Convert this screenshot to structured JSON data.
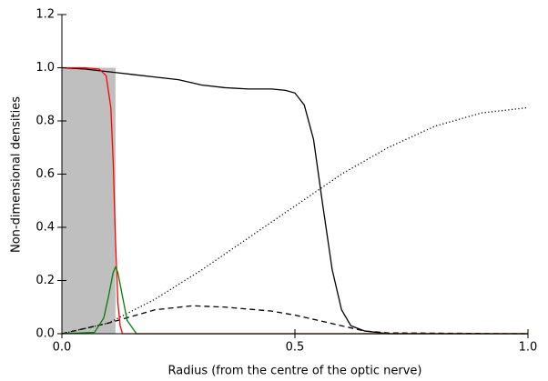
{
  "chart_data": {
    "type": "line",
    "xlabel": "Radius (from the centre of the optic nerve)",
    "ylabel": "Non-dimensional densities",
    "xlim": [
      0,
      1
    ],
    "ylim": [
      0,
      1.2
    ],
    "xticks": [
      {
        "value": 0,
        "label": "0.0"
      },
      0.5,
      {
        "value": 1,
        "label": "1.0"
      }
    ],
    "yticks": [
      {
        "value": 0,
        "label": "0.0"
      },
      0.2,
      0.4,
      0.6,
      0.8,
      {
        "value": 1,
        "label": "1.0"
      },
      1.2
    ],
    "series": [
      {
        "color": "#bfbfbf",
        "style": "area",
        "x": [
          0,
          0.115
        ],
        "values": [
          1.0,
          1.0
        ]
      },
      {
        "color": "#000000",
        "style": "solid",
        "x": [
          0,
          0.05,
          0.1,
          0.15,
          0.2,
          0.25,
          0.3,
          0.35,
          0.4,
          0.45,
          0.48,
          0.5,
          0.52,
          0.54,
          0.56,
          0.58,
          0.6,
          0.62,
          0.65,
          0.7,
          0.8,
          1.0
        ],
        "values": [
          1.0,
          0.995,
          0.985,
          0.975,
          0.965,
          0.955,
          0.935,
          0.925,
          0.92,
          0.92,
          0.915,
          0.905,
          0.86,
          0.73,
          0.48,
          0.24,
          0.09,
          0.03,
          0.01,
          0.0,
          0.0,
          0.0
        ]
      },
      {
        "color": "#000000",
        "style": "dot",
        "x": [
          0,
          0.1,
          0.2,
          0.3,
          0.4,
          0.5,
          0.6,
          0.7,
          0.8,
          0.9,
          1.0
        ],
        "values": [
          0,
          0.04,
          0.13,
          0.24,
          0.36,
          0.48,
          0.6,
          0.7,
          0.78,
          0.83,
          0.85
        ]
      },
      {
        "color": "#000000",
        "style": "dash",
        "x": [
          0,
          0.1,
          0.2,
          0.28,
          0.35,
          0.45,
          0.5,
          0.55,
          0.6,
          0.65,
          0.7,
          1.0
        ],
        "values": [
          0,
          0.04,
          0.09,
          0.105,
          0.1,
          0.085,
          0.07,
          0.05,
          0.03,
          0.01,
          0.003,
          0
        ]
      },
      {
        "color": "#ff0000",
        "style": "solid",
        "x": [
          0,
          0.05,
          0.08,
          0.095,
          0.105,
          0.11,
          0.115,
          0.12,
          0.125,
          0.13,
          1.0
        ],
        "values": [
          1,
          1,
          0.995,
          0.97,
          0.85,
          0.65,
          0.35,
          0.12,
          0.03,
          0,
          0
        ]
      },
      {
        "color": "#008000",
        "style": "solid",
        "x": [
          0,
          0.07,
          0.09,
          0.1,
          0.11,
          0.115,
          0.12,
          0.13,
          0.14,
          0.16,
          1.0
        ],
        "values": [
          0,
          0.005,
          0.06,
          0.14,
          0.23,
          0.25,
          0.23,
          0.14,
          0.05,
          0,
          0
        ]
      }
    ]
  }
}
